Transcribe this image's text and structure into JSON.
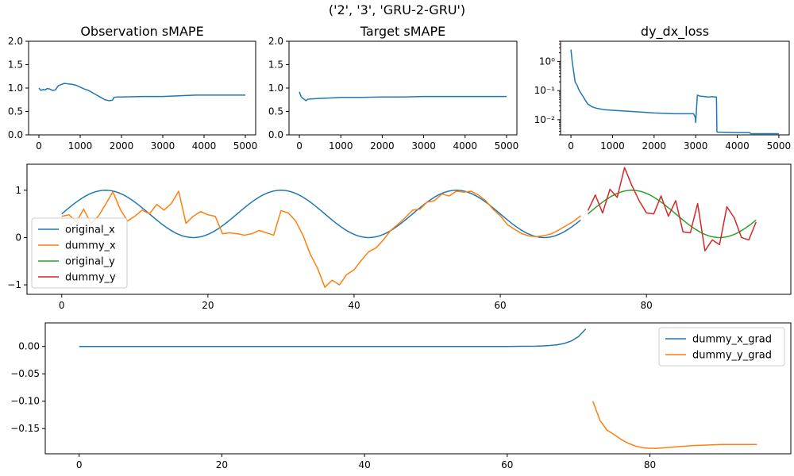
{
  "figure": {
    "suptitle": "('2', '3', 'GRU-2-GRU')"
  },
  "chart_data": [
    {
      "id": "obs",
      "type": "line",
      "title": "Observation sMAPE",
      "xlabel": "",
      "ylabel": "",
      "xlim": [
        -250,
        5250
      ],
      "ylim": [
        0,
        2
      ],
      "xticks": [
        0,
        1000,
        2000,
        3000,
        4000,
        5000
      ],
      "yticks": [
        0.0,
        0.5,
        1.0,
        1.5,
        2.0
      ],
      "ytick_labels": [
        "0.0",
        "0.5",
        "1.0",
        "1.5",
        "2.0"
      ],
      "grid": false,
      "series": [
        {
          "color": "#1f77b4",
          "x": [
            0,
            50,
            100,
            150,
            200,
            260,
            330,
            400,
            470,
            550,
            620,
            700,
            800,
            900,
            1000,
            1100,
            1200,
            1300,
            1400,
            1500,
            1600,
            1700,
            1780,
            1820,
            1900,
            2000,
            2500,
            3000,
            3500,
            3800,
            4500,
            5000
          ],
          "y": [
            1.0,
            0.95,
            0.97,
            0.96,
            0.99,
            0.98,
            0.95,
            0.96,
            1.05,
            1.08,
            1.1,
            1.09,
            1.08,
            1.06,
            1.02,
            0.98,
            0.95,
            0.9,
            0.85,
            0.8,
            0.75,
            0.73,
            0.74,
            0.8,
            0.81,
            0.81,
            0.82,
            0.82,
            0.84,
            0.85,
            0.85,
            0.85
          ]
        }
      ]
    },
    {
      "id": "tgt",
      "type": "line",
      "title": "Target sMAPE",
      "xlabel": "",
      "ylabel": "",
      "xlim": [
        -250,
        5250
      ],
      "ylim": [
        0,
        2
      ],
      "xticks": [
        0,
        1000,
        2000,
        3000,
        4000,
        5000
      ],
      "yticks": [
        0.0,
        0.5,
        1.0,
        1.5,
        2.0
      ],
      "ytick_labels": [
        "0.0",
        "0.5",
        "1.0",
        "1.5",
        "2.0"
      ],
      "grid": false,
      "series": [
        {
          "color": "#1f77b4",
          "x": [
            0,
            40,
            80,
            120,
            160,
            200,
            300,
            500,
            800,
            1000,
            1500,
            2000,
            2500,
            3000,
            3500,
            4000,
            4500,
            5000
          ],
          "y": [
            0.92,
            0.82,
            0.78,
            0.76,
            0.73,
            0.76,
            0.77,
            0.78,
            0.79,
            0.8,
            0.8,
            0.81,
            0.81,
            0.82,
            0.82,
            0.82,
            0.82,
            0.82
          ]
        }
      ]
    },
    {
      "id": "dydx",
      "type": "line",
      "title": "dy_dx_loss",
      "xlabel": "",
      "ylabel": "",
      "yscale": "log",
      "xlim": [
        -250,
        5250
      ],
      "ylim": [
        0.003,
        5
      ],
      "xticks": [
        0,
        1000,
        2000,
        3000,
        4000,
        5000
      ],
      "yticks": [
        0.01,
        0.1,
        1
      ],
      "ytick_labels": [
        "10⁻²",
        "10⁻¹",
        "10⁰"
      ],
      "grid": false,
      "series": [
        {
          "color": "#1f77b4",
          "x": [
            0,
            30,
            60,
            100,
            150,
            200,
            300,
            400,
            500,
            600,
            800,
            1000,
            1500,
            2000,
            2500,
            2950,
            2990,
            3000,
            3040,
            3100,
            3200,
            3300,
            3400,
            3500,
            3510,
            3520,
            3600,
            4000,
            4300,
            4320,
            4400,
            5000
          ],
          "y": [
            2.6,
            1.0,
            0.5,
            0.2,
            0.15,
            0.1,
            0.06,
            0.035,
            0.028,
            0.025,
            0.022,
            0.021,
            0.019,
            0.017,
            0.016,
            0.016,
            0.012,
            0.008,
            0.07,
            0.065,
            0.063,
            0.06,
            0.062,
            0.06,
            0.004,
            0.0037,
            0.0037,
            0.0036,
            0.0036,
            0.0033,
            0.0033,
            0.0033
          ]
        }
      ]
    },
    {
      "id": "series",
      "type": "line",
      "title": "",
      "xlabel": "",
      "ylabel": "",
      "xlim": [
        -4.75,
        99.75
      ],
      "ylim": [
        -1.2,
        1.55
      ],
      "xticks": [
        0,
        20,
        40,
        60,
        80
      ],
      "yticks": [
        -1,
        0,
        1
      ],
      "ytick_labels": [
        "−1",
        "0",
        "1"
      ],
      "grid": false,
      "legend": "center-left",
      "series": [
        {
          "name": "original_x",
          "color": "#1f77b4",
          "fn": "sine",
          "x_start": 0,
          "x_end": 71
        },
        {
          "name": "dummy_x",
          "color": "#ff7f0e",
          "x": [
            0,
            1,
            2,
            3,
            4,
            5,
            6,
            7,
            8,
            9,
            10,
            11,
            12,
            13,
            14,
            15,
            16,
            17,
            18,
            19,
            20,
            21,
            22,
            23,
            24,
            25,
            26,
            27,
            28,
            29,
            30,
            31,
            32,
            33,
            34,
            35,
            36,
            37,
            38,
            39,
            40,
            41,
            42,
            43,
            44,
            45,
            46,
            47,
            48,
            49,
            50,
            51,
            52,
            53,
            54,
            55,
            56,
            57,
            58,
            59,
            60,
            61,
            62,
            63,
            64,
            65,
            66,
            67,
            68,
            69,
            70,
            71
          ],
          "y": [
            0.45,
            0.48,
            0.33,
            0.6,
            0.3,
            0.45,
            0.7,
            0.97,
            0.6,
            0.35,
            0.45,
            0.58,
            0.5,
            0.7,
            0.58,
            0.72,
            0.98,
            0.3,
            0.45,
            0.55,
            0.48,
            0.45,
            0.08,
            0.1,
            0.08,
            0.05,
            0.08,
            0.15,
            0.1,
            0.05,
            0.57,
            0.52,
            0.35,
            0.05,
            -0.35,
            -0.65,
            -1.05,
            -0.9,
            -1.0,
            -0.78,
            -0.68,
            -0.48,
            -0.3,
            -0.22,
            -0.05,
            0.15,
            0.28,
            0.42,
            0.58,
            0.6,
            0.75,
            0.78,
            0.92,
            0.88,
            0.98,
            0.96,
            0.98,
            0.9,
            0.78,
            0.6,
            0.46,
            0.27,
            0.17,
            0.08,
            0.03,
            0.02,
            0.04,
            0.08,
            0.16,
            0.25,
            0.34,
            0.46
          ]
        },
        {
          "name": "original_y",
          "color": "#2ca02c",
          "fn": "sine",
          "x_start": 72,
          "x_end": 95
        },
        {
          "name": "dummy_y",
          "color": "#d62728",
          "x": [
            72,
            73,
            74,
            75,
            76,
            77,
            78,
            79,
            80,
            81,
            82,
            83,
            84,
            85,
            86,
            87,
            88,
            89,
            90,
            91,
            92,
            93,
            94,
            95
          ],
          "y": [
            0.57,
            0.9,
            0.52,
            1.02,
            0.85,
            1.48,
            1.1,
            0.78,
            0.52,
            0.5,
            0.88,
            0.45,
            0.78,
            0.12,
            0.1,
            0.72,
            -0.28,
            -0.05,
            -0.15,
            0.65,
            0.42,
            0.0,
            -0.05,
            0.33
          ]
        }
      ]
    },
    {
      "id": "grad",
      "type": "line",
      "title": "",
      "xlabel": "",
      "ylabel": "",
      "xlim": [
        -4.75,
        99.75
      ],
      "ylim": [
        -0.196,
        0.043
      ],
      "xticks": [
        0,
        20,
        40,
        60,
        80
      ],
      "yticks": [
        0.0,
        -0.05,
        -0.1,
        -0.15
      ],
      "ytick_labels": [
        "0.00",
        "−0.05",
        "−0.10",
        "−0.15"
      ],
      "grid": false,
      "legend": "top-right",
      "series": [
        {
          "name": "dummy_x_grad",
          "color": "#1f77b4",
          "x": [
            0,
            10,
            20,
            30,
            40,
            50,
            55,
            60,
            62,
            64,
            65,
            66,
            67,
            68,
            69,
            70,
            71
          ],
          "y": [
            0.0,
            0.0,
            0.0,
            0.0,
            0.0,
            0.0,
            0.0,
            0.0,
            0.0002,
            0.0005,
            0.001,
            0.0018,
            0.003,
            0.0055,
            0.01,
            0.018,
            0.032
          ]
        },
        {
          "name": "dummy_y_grad",
          "color": "#ff7f0e",
          "x": [
            72,
            73,
            74,
            75,
            76,
            77,
            78,
            79,
            80,
            81,
            82,
            83,
            84,
            85,
            86,
            88,
            90,
            92,
            95
          ],
          "y": [
            -0.1,
            -0.135,
            -0.153,
            -0.161,
            -0.17,
            -0.177,
            -0.182,
            -0.185,
            -0.186,
            -0.186,
            -0.185,
            -0.184,
            -0.183,
            -0.182,
            -0.181,
            -0.18,
            -0.179,
            -0.179,
            -0.179
          ]
        }
      ]
    }
  ]
}
